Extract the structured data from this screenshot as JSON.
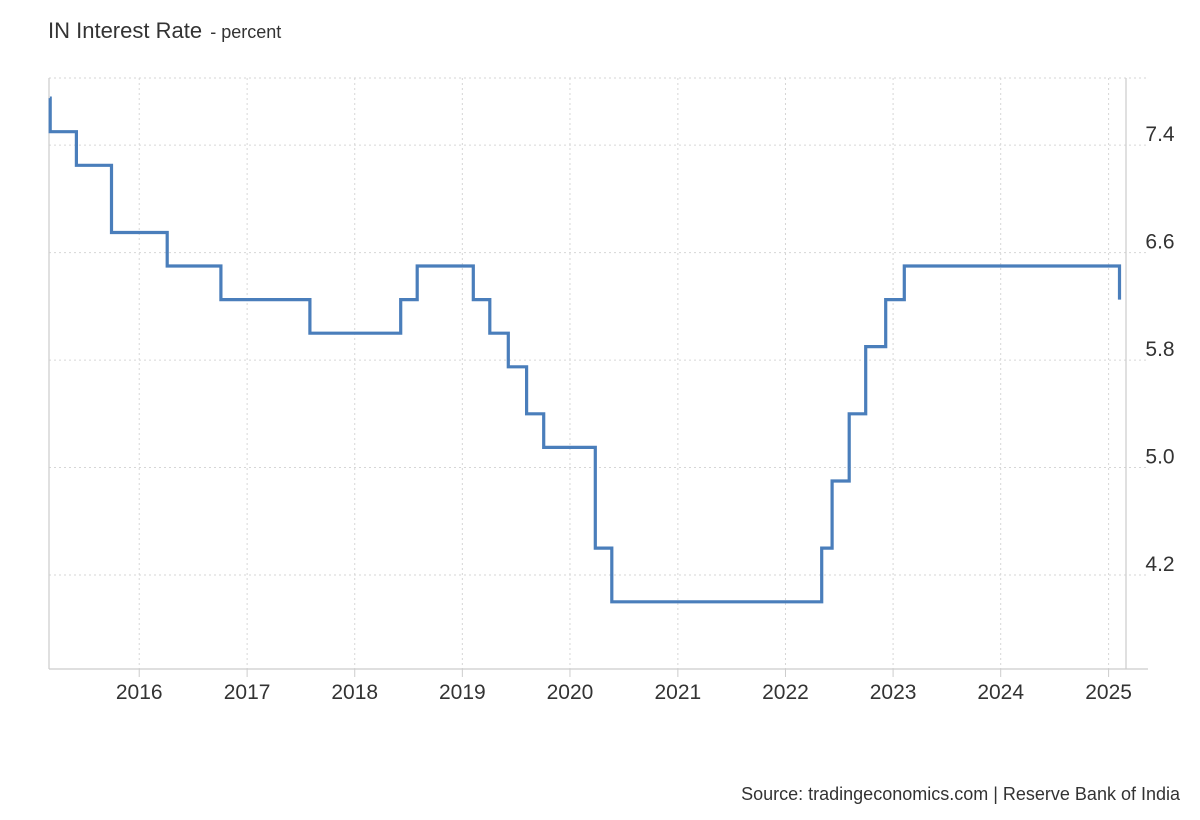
{
  "header": {
    "title": "IN Interest Rate",
    "unit": "- percent"
  },
  "footer": {
    "source": "Source: tradingeconomics.com | Reserve Bank of India"
  },
  "chart_data": {
    "type": "line",
    "step": true,
    "title": "IN Interest Rate",
    "subtitle": "percent",
    "line_color": "#4a7ebb",
    "grid": true,
    "y_axis_position": "right",
    "xlim": [
      "2015-03-01",
      "2025-03-01"
    ],
    "ylim": [
      3.5,
      7.9
    ],
    "x_ticks": [
      "2016",
      "2017",
      "2018",
      "2019",
      "2020",
      "2021",
      "2022",
      "2023",
      "2024",
      "2025"
    ],
    "y_ticks": [
      4.2,
      5.0,
      5.8,
      6.6,
      7.4
    ],
    "series": [
      {
        "points": [
          {
            "date": "2015-03-04",
            "value": 7.75
          },
          {
            "date": "2015-03-05",
            "value": 7.5
          },
          {
            "date": "2015-06-02",
            "value": 7.25
          },
          {
            "date": "2015-09-29",
            "value": 6.75
          },
          {
            "date": "2016-04-05",
            "value": 6.5
          },
          {
            "date": "2016-10-04",
            "value": 6.25
          },
          {
            "date": "2017-08-02",
            "value": 6.0
          },
          {
            "date": "2018-06-06",
            "value": 6.25
          },
          {
            "date": "2018-08-01",
            "value": 6.5
          },
          {
            "date": "2019-02-07",
            "value": 6.25
          },
          {
            "date": "2019-04-04",
            "value": 6.0
          },
          {
            "date": "2019-06-06",
            "value": 5.75
          },
          {
            "date": "2019-08-07",
            "value": 5.4
          },
          {
            "date": "2019-10-04",
            "value": 5.15
          },
          {
            "date": "2020-03-27",
            "value": 4.4
          },
          {
            "date": "2020-05-22",
            "value": 4.0
          },
          {
            "date": "2022-05-04",
            "value": 4.4
          },
          {
            "date": "2022-06-08",
            "value": 4.9
          },
          {
            "date": "2022-08-05",
            "value": 5.4
          },
          {
            "date": "2022-09-30",
            "value": 5.9
          },
          {
            "date": "2022-12-07",
            "value": 6.25
          },
          {
            "date": "2023-02-08",
            "value": 6.5
          },
          {
            "date": "2025-02-07",
            "value": 6.25
          }
        ]
      }
    ]
  }
}
